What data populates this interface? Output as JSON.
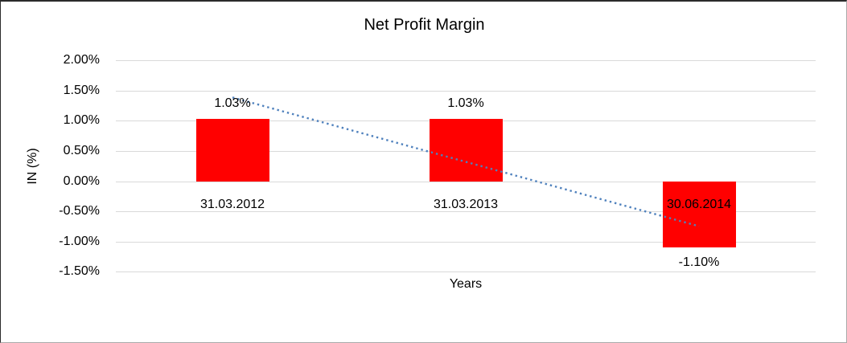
{
  "chart_data": {
    "type": "bar",
    "title": "Net Profit Margin",
    "xlabel": "Years",
    "ylabel": "IN (%)",
    "categories": [
      "31.03.2012",
      "31.03.2013",
      "30.06.2014"
    ],
    "values": [
      1.03,
      1.03,
      -1.1
    ],
    "value_labels": [
      "1.03%",
      "1.03%",
      "-1.10%"
    ],
    "y_ticks": [
      {
        "label": "2.00%",
        "value": 2.0
      },
      {
        "label": "1.50%",
        "value": 1.5
      },
      {
        "label": "1.00%",
        "value": 1.0
      },
      {
        "label": "0.50%",
        "value": 0.5
      },
      {
        "label": "0.00%",
        "value": 0.0
      },
      {
        "label": "-0.50%",
        "value": -0.5
      },
      {
        "label": "-1.00%",
        "value": -1.0
      },
      {
        "label": "-1.50%",
        "value": -1.5
      }
    ],
    "ylim": [
      -1.5,
      2.0
    ],
    "grid": "horizontal",
    "legend_position": "none",
    "trendline": {
      "type": "linear",
      "style": "dotted",
      "start_value": 1.385,
      "end_value": -0.745
    },
    "colors": {
      "bar": "#FF0000",
      "trendline": "#4F81BD",
      "gridline": "#D9D9D9",
      "text": "#000000",
      "background": "#FFFFFF"
    }
  }
}
